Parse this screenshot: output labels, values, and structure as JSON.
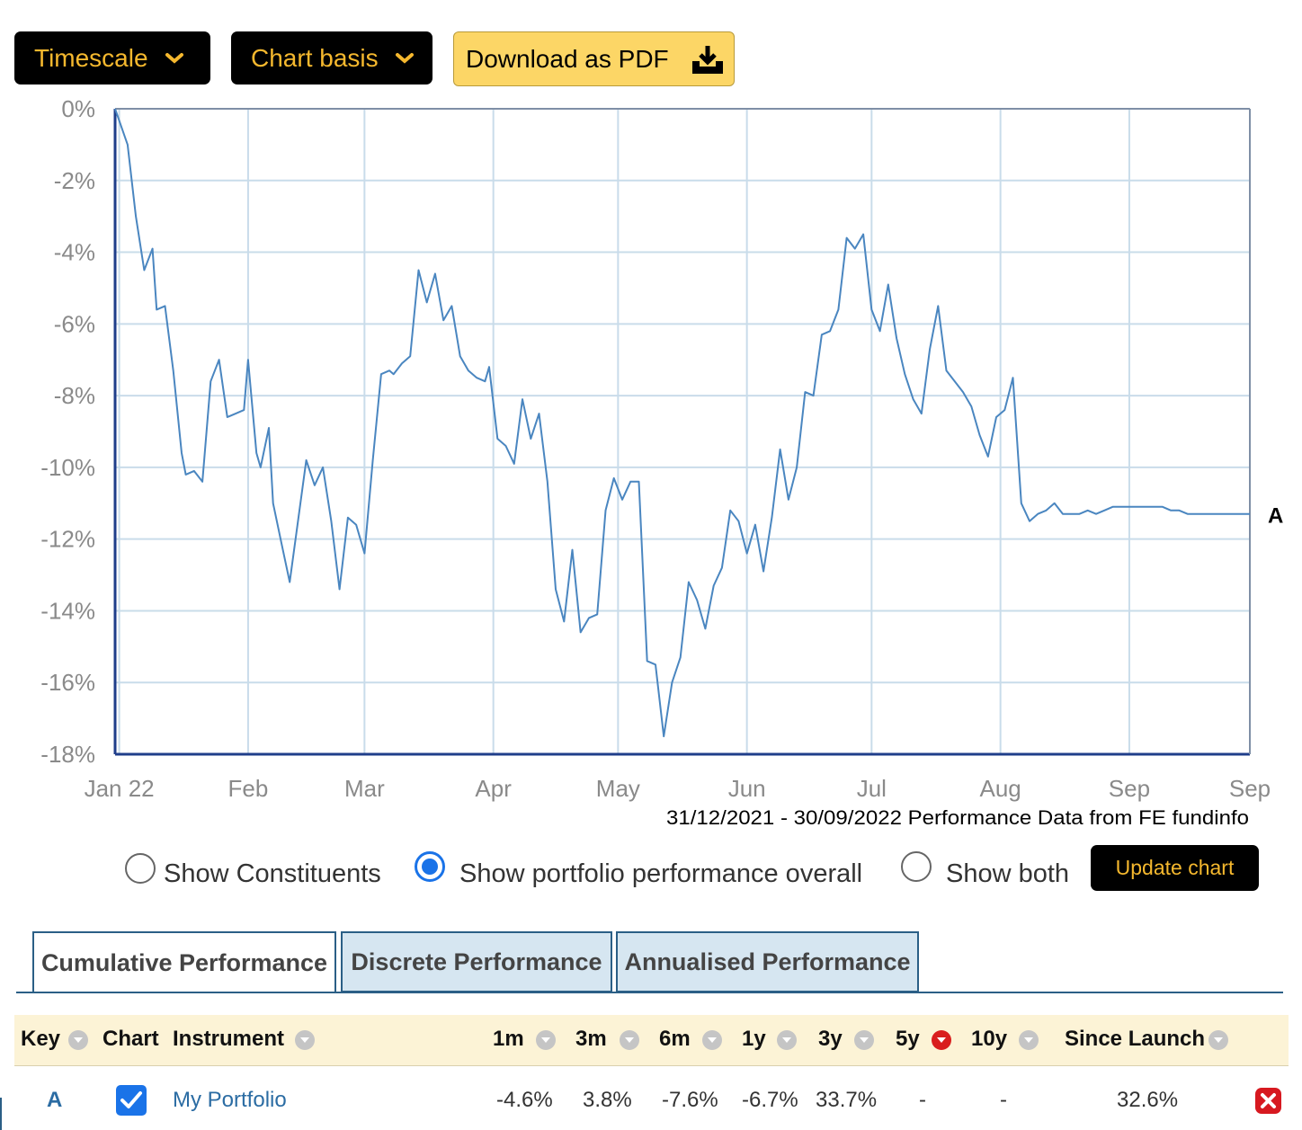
{
  "toolbar": {
    "timescale_label": "Timescale",
    "chart_basis_label": "Chart basis",
    "download_label": "Download as PDF",
    "icons": [
      "chevron-down-icon",
      "download-tray-icon"
    ]
  },
  "chart_data": {
    "type": "line",
    "title": "",
    "xlabel": "",
    "ylabel": "",
    "y_ticks": [
      "0%",
      "-2%",
      "-4%",
      "-6%",
      "-8%",
      "-10%",
      "-12%",
      "-14%",
      "-16%",
      "-18%"
    ],
    "ylim": [
      -18,
      0
    ],
    "x_ticks": [
      "Jan 22",
      "Feb",
      "Mar",
      "Apr",
      "May",
      "Jun",
      "Jul",
      "Aug",
      "Sep",
      "Sep"
    ],
    "x_tick_dates": [
      "2022-01-01",
      "2022-02-01",
      "2022-03-01",
      "2022-04-01",
      "2022-05-01",
      "2022-06-01",
      "2022-07-01",
      "2022-08-01",
      "2022-09-01",
      "2022-09-30"
    ],
    "xlim": [
      "2021-12-31",
      "2022-09-30"
    ],
    "grid": true,
    "source_note": "31/12/2021 - 30/09/2022 Performance Data from FE fundinfo",
    "series": [
      {
        "name": "A",
        "color": "#4a86c0",
        "x": [
          "2021-12-31",
          "2022-01-03",
          "2022-01-05",
          "2022-01-07",
          "2022-01-09",
          "2022-01-10",
          "2022-01-12",
          "2022-01-14",
          "2022-01-16",
          "2022-01-17",
          "2022-01-19",
          "2022-01-21",
          "2022-01-23",
          "2022-01-25",
          "2022-01-27",
          "2022-01-29",
          "2022-01-31",
          "2022-02-01",
          "2022-02-03",
          "2022-02-04",
          "2022-02-06",
          "2022-02-07",
          "2022-02-09",
          "2022-02-11",
          "2022-02-13",
          "2022-02-15",
          "2022-02-17",
          "2022-02-19",
          "2022-02-21",
          "2022-02-23",
          "2022-02-25",
          "2022-02-27",
          "2022-03-01",
          "2022-03-03",
          "2022-03-05",
          "2022-03-07",
          "2022-03-08",
          "2022-03-10",
          "2022-03-12",
          "2022-03-14",
          "2022-03-16",
          "2022-03-18",
          "2022-03-20",
          "2022-03-22",
          "2022-03-24",
          "2022-03-26",
          "2022-03-28",
          "2022-03-30",
          "2022-03-31",
          "2022-04-02",
          "2022-04-04",
          "2022-04-06",
          "2022-04-08",
          "2022-04-10",
          "2022-04-12",
          "2022-04-14",
          "2022-04-16",
          "2022-04-18",
          "2022-04-20",
          "2022-04-22",
          "2022-04-24",
          "2022-04-26",
          "2022-04-28",
          "2022-04-30",
          "2022-05-02",
          "2022-05-04",
          "2022-05-06",
          "2022-05-08",
          "2022-05-10",
          "2022-05-12",
          "2022-05-14",
          "2022-05-16",
          "2022-05-18",
          "2022-05-20",
          "2022-05-22",
          "2022-05-24",
          "2022-05-26",
          "2022-05-28",
          "2022-05-30",
          "2022-06-01",
          "2022-06-03",
          "2022-06-05",
          "2022-06-07",
          "2022-06-09",
          "2022-06-11",
          "2022-06-13",
          "2022-06-15",
          "2022-06-17",
          "2022-06-19",
          "2022-06-21",
          "2022-06-23",
          "2022-06-25",
          "2022-06-27",
          "2022-06-29",
          "2022-07-01",
          "2022-07-03",
          "2022-07-05",
          "2022-07-07",
          "2022-07-09",
          "2022-07-11",
          "2022-07-13",
          "2022-07-15",
          "2022-07-17",
          "2022-07-19",
          "2022-07-21",
          "2022-07-23",
          "2022-07-25",
          "2022-07-27",
          "2022-07-29",
          "2022-07-31",
          "2022-08-02",
          "2022-08-04",
          "2022-08-06",
          "2022-08-08",
          "2022-08-10",
          "2022-08-12",
          "2022-08-14",
          "2022-08-16",
          "2022-08-18",
          "2022-08-20",
          "2022-08-22",
          "2022-08-24",
          "2022-08-26",
          "2022-08-28",
          "2022-08-30",
          "2022-09-01",
          "2022-09-03",
          "2022-09-05",
          "2022-09-07",
          "2022-09-09",
          "2022-09-11",
          "2022-09-13",
          "2022-09-15",
          "2022-09-17",
          "2022-09-19",
          "2022-09-21",
          "2022-09-23",
          "2022-09-25",
          "2022-09-27",
          "2022-09-29",
          "2022-09-30"
        ],
        "y": [
          0.0,
          -1.0,
          -3.0,
          -4.5,
          -3.9,
          -5.6,
          -5.5,
          -7.3,
          -9.6,
          -10.2,
          -10.1,
          -10.4,
          -7.6,
          -7.0,
          -8.6,
          -8.5,
          -8.4,
          -7.0,
          -9.6,
          -10.0,
          -8.9,
          -11.0,
          -12.1,
          -13.2,
          -11.5,
          -9.8,
          -10.5,
          -10.0,
          -11.5,
          -13.4,
          -11.4,
          -11.6,
          -12.4,
          -9.8,
          -7.4,
          -7.3,
          -7.4,
          -7.1,
          -6.9,
          -4.5,
          -5.4,
          -4.6,
          -5.9,
          -5.5,
          -6.9,
          -7.3,
          -7.5,
          -7.6,
          -7.2,
          -9.2,
          -9.4,
          -9.9,
          -8.1,
          -9.2,
          -8.5,
          -10.4,
          -13.4,
          -14.3,
          -12.3,
          -14.6,
          -14.2,
          -14.1,
          -11.2,
          -10.3,
          -10.9,
          -10.4,
          -10.4,
          -15.4,
          -15.5,
          -17.5,
          -16.0,
          -15.3,
          -13.2,
          -13.7,
          -14.5,
          -13.3,
          -12.8,
          -11.2,
          -11.5,
          -12.4,
          -11.6,
          -12.9,
          -11.4,
          -9.5,
          -10.9,
          -10.0,
          -7.9,
          -8.0,
          -6.3,
          -6.2,
          -5.6,
          -3.6,
          -3.9,
          -3.5,
          -5.6,
          -6.2,
          -4.9,
          -6.4,
          -7.4,
          -8.1,
          -8.5,
          -6.7,
          -5.5,
          -7.3,
          -7.6,
          -7.9,
          -8.3,
          -9.1,
          -9.7,
          -8.6,
          -8.4,
          -7.5,
          -11.0,
          -11.5,
          -11.3,
          -11.2,
          -11.0,
          -11.3,
          -11.3,
          -11.3,
          -11.2,
          -11.3,
          -11.2,
          -11.1,
          -11.1,
          -11.1,
          -11.1,
          -11.1,
          -11.1,
          -11.1,
          -11.2,
          -11.2,
          -11.3,
          -11.3,
          -11.3,
          -11.3,
          -11.3,
          -11.3,
          -11.3,
          -11.3,
          -11.3
        ]
      }
    ],
    "series_end_label": "A"
  },
  "options": {
    "radio_1_label": "Show Constituents",
    "radio_2_label": "Show portfolio performance overall",
    "radio_3_label": "Show both",
    "selected": "Show portfolio performance overall",
    "update_label": "Update chart"
  },
  "tabs": {
    "cumulative": "Cumulative Performance",
    "discrete": "Discrete Performance",
    "annualised": "Annualised Performance",
    "active": "Cumulative Performance"
  },
  "table": {
    "headers": {
      "key": "Key",
      "chart": "Chart",
      "instrument": "Instrument",
      "m1": "1m",
      "m3": "3m",
      "m6": "6m",
      "y1": "1y",
      "y3": "3y",
      "y5": "5y",
      "y10": "10y",
      "since_launch": "Since Launch"
    },
    "rows": [
      {
        "key": "A",
        "chart_checked": true,
        "instrument": "My Portfolio",
        "m1": "-4.6%",
        "m3": "3.8%",
        "m6": "-7.6%",
        "y1": "-6.7%",
        "y3": "33.7%",
        "y5": "-",
        "y10": "-",
        "since_launch": "32.6%"
      }
    ],
    "colors": {
      "header_bg": "#fcf3d6",
      "link": "#2b6ca3",
      "remove": "#d71920"
    }
  }
}
